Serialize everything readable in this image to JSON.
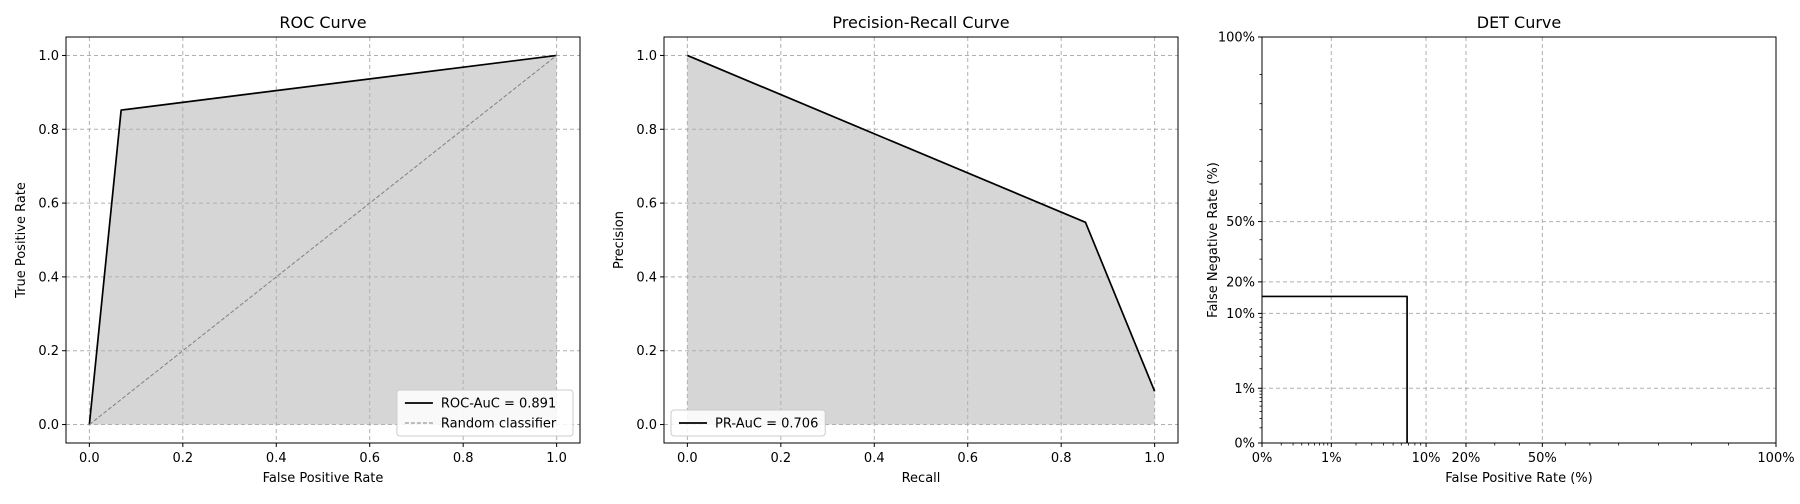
{
  "chart_data": [
    {
      "type": "line",
      "title": "ROC Curve",
      "xlabel": "False Positive Rate",
      "ylabel": "True Positive Rate",
      "xlim": [
        -0.05,
        1.05
      ],
      "ylim": [
        -0.05,
        1.05
      ],
      "x_ticks": [
        0.0,
        0.2,
        0.4,
        0.6,
        0.8,
        1.0
      ],
      "x_tick_labels": [
        "0.0",
        "0.2",
        "0.4",
        "0.6",
        "0.8",
        "1.0"
      ],
      "y_ticks": [
        0.0,
        0.2,
        0.4,
        0.6,
        0.8,
        1.0
      ],
      "y_tick_labels": [
        "0.0",
        "0.2",
        "0.4",
        "0.6",
        "0.8",
        "1.0"
      ],
      "grid": true,
      "legend_position": "lower right",
      "fill": {
        "x": [
          0.0,
          0.068,
          1.0
        ],
        "y": [
          0.0,
          0.852,
          1.0
        ],
        "color": "#d6d6d6"
      },
      "series": [
        {
          "name": "ROC-AuC = 0.891",
          "x": [
            0.0,
            0.068,
            1.0
          ],
          "y": [
            0.0,
            0.852,
            1.0
          ],
          "color": "#000000",
          "style": "solid"
        },
        {
          "name": "Random classifier",
          "x": [
            0.0,
            1.0
          ],
          "y": [
            0.0,
            1.0
          ],
          "color": "#808080",
          "style": "dashed"
        }
      ]
    },
    {
      "type": "line",
      "title": "Precision-Recall Curve",
      "xlabel": "Recall",
      "ylabel": "Precision",
      "xlim": [
        -0.05,
        1.05
      ],
      "ylim": [
        -0.05,
        1.05
      ],
      "x_ticks": [
        0.0,
        0.2,
        0.4,
        0.6,
        0.8,
        1.0
      ],
      "x_tick_labels": [
        "0.0",
        "0.2",
        "0.4",
        "0.6",
        "0.8",
        "1.0"
      ],
      "y_ticks": [
        0.0,
        0.2,
        0.4,
        0.6,
        0.8,
        1.0
      ],
      "y_tick_labels": [
        "0.0",
        "0.2",
        "0.4",
        "0.6",
        "0.8",
        "1.0"
      ],
      "grid": true,
      "legend_position": "lower left",
      "fill": {
        "x": [
          0.0,
          0.852,
          1.0
        ],
        "y": [
          1.0,
          0.548,
          0.09
        ],
        "color": "#d6d6d6"
      },
      "series": [
        {
          "name": "PR-AuC = 0.706",
          "x": [
            0.0,
            0.852,
            1.0
          ],
          "y": [
            1.0,
            0.548,
            0.09
          ],
          "color": "#000000",
          "style": "solid"
        }
      ]
    },
    {
      "type": "line",
      "title": "DET Curve",
      "xlabel": "False Positive Rate (%)",
      "ylabel": "False Negative Rate (%)",
      "scale": "probit",
      "x_ticks": [
        0.0,
        0.01,
        0.1,
        0.2,
        0.5,
        1.0
      ],
      "x_tick_labels": [
        "0%",
        "1%",
        "10%",
        "20%",
        "50%",
        "100%"
      ],
      "y_ticks": [
        0.0,
        0.01,
        0.1,
        0.2,
        0.5,
        1.0
      ],
      "y_tick_labels": [
        "0%",
        "1%",
        "10%",
        "20%",
        "50%",
        "100%"
      ],
      "grid": true,
      "series": [
        {
          "name": "",
          "x": [
            0.0,
            0.068,
            0.068
          ],
          "y": [
            0.148,
            0.148,
            0.0
          ],
          "color": "#000000",
          "style": "solid"
        }
      ]
    }
  ]
}
